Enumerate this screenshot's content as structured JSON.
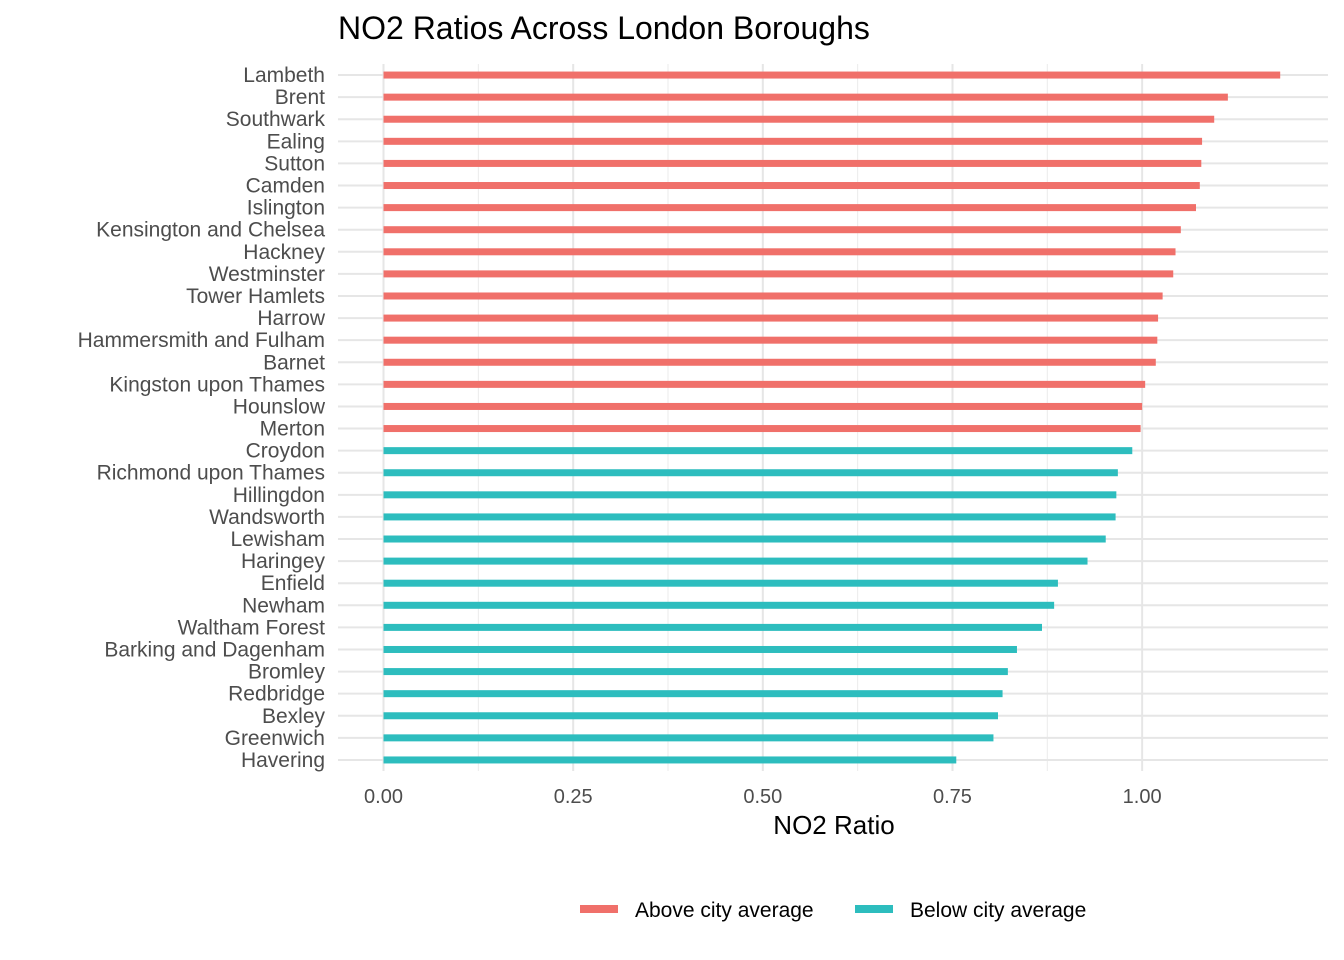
{
  "chart_data": {
    "type": "bar",
    "orientation": "horizontal",
    "title": "NO2 Ratios Across London Boroughs",
    "xlabel": "NO2 Ratio",
    "ylabel": "",
    "xlim": [
      -0.06,
      1.245
    ],
    "xticks": [
      0,
      0.25,
      0.5,
      0.75,
      1.0
    ],
    "xtick_labels": [
      "0.00",
      "0.25",
      "0.50",
      "0.75",
      "1.00"
    ],
    "grid": true,
    "legend_position": "bottom",
    "colors": {
      "above": "#F0706A",
      "below": "#2DBDBE"
    },
    "legend": [
      {
        "key": "above",
        "label": "Above city average"
      },
      {
        "key": "below",
        "label": "Below city average"
      }
    ],
    "categories": [
      "Lambeth",
      "Brent",
      "Southwark",
      "Ealing",
      "Sutton",
      "Camden",
      "Islington",
      "Kensington and Chelsea",
      "Hackney",
      "Westminster",
      "Tower Hamlets",
      "Harrow",
      "Hammersmith and Fulham",
      "Barnet",
      "Kingston upon Thames",
      "Hounslow",
      "Merton",
      "Croydon",
      "Richmond upon Thames",
      "Hillingdon",
      "Wandsworth",
      "Lewisham",
      "Haringey",
      "Enfield",
      "Newham",
      "Waltham Forest",
      "Barking and Dagenham",
      "Bromley",
      "Redbridge",
      "Bexley",
      "Greenwich",
      "Havering"
    ],
    "values": [
      1.182,
      1.113,
      1.095,
      1.079,
      1.078,
      1.076,
      1.071,
      1.051,
      1.044,
      1.041,
      1.027,
      1.021,
      1.02,
      1.018,
      1.004,
      1.0,
      0.998,
      0.987,
      0.968,
      0.966,
      0.965,
      0.952,
      0.928,
      0.889,
      0.884,
      0.868,
      0.835,
      0.823,
      0.816,
      0.81,
      0.804,
      0.755
    ],
    "groups": [
      "above",
      "above",
      "above",
      "above",
      "above",
      "above",
      "above",
      "above",
      "above",
      "above",
      "above",
      "above",
      "above",
      "above",
      "above",
      "above",
      "above",
      "below",
      "below",
      "below",
      "below",
      "below",
      "below",
      "below",
      "below",
      "below",
      "below",
      "below",
      "below",
      "below",
      "below",
      "below"
    ]
  }
}
